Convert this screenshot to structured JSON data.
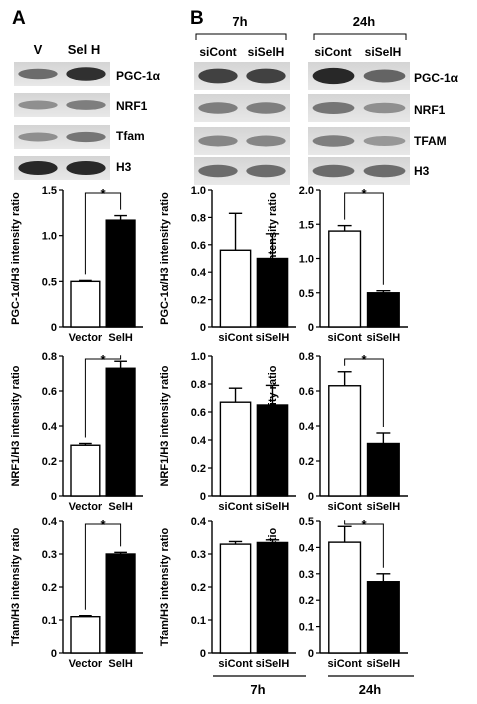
{
  "panels": {
    "a": "A",
    "b": "B"
  },
  "blots": {
    "a": {
      "col_labels": [
        "V",
        "Sel H"
      ],
      "rows": [
        {
          "label": "PGC-1α",
          "intensity": [
            0.55,
            0.9
          ]
        },
        {
          "label": "NRF1",
          "intensity": [
            0.35,
            0.45
          ]
        },
        {
          "label": "Tfam",
          "intensity": [
            0.35,
            0.5
          ]
        },
        {
          "label": "H3",
          "intensity": [
            0.95,
            0.95
          ]
        }
      ]
    },
    "b": {
      "groups": [
        {
          "time": "7h",
          "col_labels": [
            "siCont",
            "siSelH"
          ]
        },
        {
          "time": "24h",
          "col_labels": [
            "siCont",
            "siSelH"
          ]
        }
      ],
      "rows": [
        {
          "label": "PGC-1α",
          "intensity_7h": [
            0.8,
            0.8
          ],
          "intensity_24h": [
            0.95,
            0.6
          ]
        },
        {
          "label": "NRF1",
          "intensity_7h": [
            0.45,
            0.45
          ],
          "intensity_24h": [
            0.5,
            0.35
          ]
        },
        {
          "label": "TFAM",
          "intensity_7h": [
            0.4,
            0.4
          ],
          "intensity_24h": [
            0.45,
            0.3
          ]
        },
        {
          "label": "H3",
          "intensity_7h": [
            0.55,
            0.55
          ],
          "intensity_24h": [
            0.55,
            0.55
          ]
        }
      ]
    }
  },
  "bottom_labels": {
    "b1": "7h",
    "b2": "24h"
  },
  "chart_data": [
    {
      "id": "A1",
      "type": "bar",
      "categories": [
        "Vector",
        "SelH"
      ],
      "values": [
        0.5,
        1.17
      ],
      "errors": [
        0.01,
        0.05
      ],
      "ylabel": "PGC-1α/H3 intensity ratio",
      "ylim": [
        0,
        1.5
      ],
      "ticks": [
        "0",
        "0.5",
        "1.0",
        "1.5"
      ],
      "significance": "*",
      "bar_colors": [
        "#ffffff",
        "#000000"
      ]
    },
    {
      "id": "B1",
      "type": "bar",
      "categories": [
        "siCont",
        "siSelH"
      ],
      "values": [
        0.56,
        0.5
      ],
      "errors": [
        0.27,
        0.18
      ],
      "ylabel": "PGC-1α/H3 intensity ratio",
      "ylim": [
        0,
        1.0
      ],
      "ticks": [
        "0",
        "0.2",
        "0.4",
        "0.6",
        "0.8",
        "1.0"
      ],
      "significance": "",
      "bar_colors": [
        "#ffffff",
        "#000000"
      ]
    },
    {
      "id": "C1",
      "type": "bar",
      "categories": [
        "siCont",
        "siSelH"
      ],
      "values": [
        1.4,
        0.5
      ],
      "errors": [
        0.08,
        0.03
      ],
      "ylabel": "PGC-1α/H3 intensity ratio",
      "ylim": [
        0,
        2.0
      ],
      "ticks": [
        "0",
        "0.5",
        "1.0",
        "1.5",
        "2.0"
      ],
      "significance": "*",
      "bar_colors": [
        "#ffffff",
        "#000000"
      ]
    },
    {
      "id": "A2",
      "type": "bar",
      "categories": [
        "Vector",
        "SelH"
      ],
      "values": [
        0.29,
        0.73
      ],
      "errors": [
        0.01,
        0.04
      ],
      "ylabel": "NRF1/H3 intensity ratio",
      "ylim": [
        0,
        0.8
      ],
      "ticks": [
        "0",
        "0.2",
        "0.4",
        "0.6",
        "0.8"
      ],
      "significance": "*",
      "bar_colors": [
        "#ffffff",
        "#000000"
      ]
    },
    {
      "id": "B2",
      "type": "bar",
      "categories": [
        "siCont",
        "siSelH"
      ],
      "values": [
        0.67,
        0.65
      ],
      "errors": [
        0.1,
        0.14
      ],
      "ylabel": "NRF1/H3 intensity ratio",
      "ylim": [
        0,
        1.0
      ],
      "ticks": [
        "0",
        "0.2",
        "0.4",
        "0.6",
        "0.8",
        "1.0"
      ],
      "significance": "",
      "bar_colors": [
        "#ffffff",
        "#000000"
      ]
    },
    {
      "id": "C2",
      "type": "bar",
      "categories": [
        "siCont",
        "siSelH"
      ],
      "values": [
        0.63,
        0.3
      ],
      "errors": [
        0.08,
        0.06
      ],
      "ylabel": "NRF1/H3 intensity ratio",
      "ylim": [
        0,
        0.8
      ],
      "ticks": [
        "0",
        "0.2",
        "0.4",
        "0.6",
        "0.8"
      ],
      "significance": "*",
      "bar_colors": [
        "#ffffff",
        "#000000"
      ]
    },
    {
      "id": "A3",
      "type": "bar",
      "categories": [
        "Vector",
        "SelH"
      ],
      "values": [
        0.11,
        0.3
      ],
      "errors": [
        0.003,
        0.005
      ],
      "ylabel": "Tfam/H3 intensity ratio",
      "ylim": [
        0,
        0.4
      ],
      "ticks": [
        "0",
        "0.1",
        "0.2",
        "0.3",
        "0.4"
      ],
      "significance": "*",
      "bar_colors": [
        "#ffffff",
        "#000000"
      ]
    },
    {
      "id": "B3",
      "type": "bar",
      "categories": [
        "siCont",
        "siSelH"
      ],
      "values": [
        0.33,
        0.335
      ],
      "errors": [
        0.008,
        0.008
      ],
      "ylabel": "Tfam/H3 intensity ratio",
      "ylim": [
        0,
        0.4
      ],
      "ticks": [
        "0",
        "0.1",
        "0.2",
        "0.3",
        "0.4"
      ],
      "significance": "",
      "bar_colors": [
        "#ffffff",
        "#000000"
      ]
    },
    {
      "id": "C3",
      "type": "bar",
      "categories": [
        "siCont",
        "siSelH"
      ],
      "values": [
        0.42,
        0.27
      ],
      "errors": [
        0.06,
        0.03
      ],
      "ylabel": "Tfam/H3 intensity ratio",
      "ylim": [
        0,
        0.5
      ],
      "ticks": [
        "0",
        "0.1",
        "0.2",
        "0.3",
        "0.4",
        "0.5"
      ],
      "significance": "*",
      "bar_colors": [
        "#ffffff",
        "#000000"
      ]
    }
  ]
}
